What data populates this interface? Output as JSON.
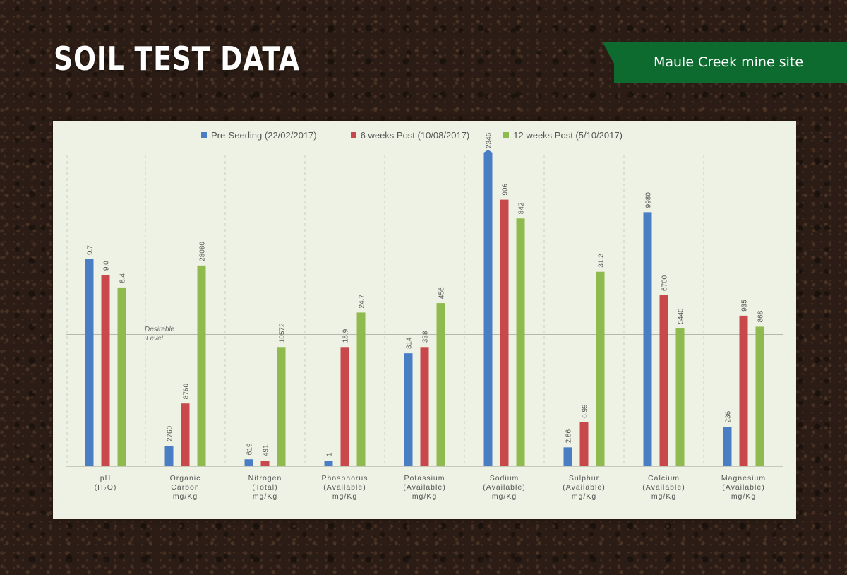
{
  "header": {
    "title": "SOIL TEST DATA",
    "site_label": "Maule Creek mine site"
  },
  "chart": {
    "desirable_label_line1": "Desirable",
    "desirable_label_line2": "Level"
  },
  "colors": {
    "pre_seeding": "#4a7ec4",
    "six_weeks": "#c8484b",
    "twelve_weeks": "#8fba4d",
    "banner": "#0d6b30"
  },
  "chart_data": {
    "type": "bar",
    "title": "",
    "categories": [
      [
        "pH",
        "(H₂O)"
      ],
      [
        "Organic",
        "Carbon",
        "mg/Kg"
      ],
      [
        "Nitrogen",
        "(Total)",
        "mg/Kg"
      ],
      [
        "Phosphorus",
        "(Available)",
        "mg/Kg"
      ],
      [
        "Potassium",
        "(Available)",
        "mg/Kg"
      ],
      [
        "Sodium",
        "(Available)",
        "mg/Kg"
      ],
      [
        "Sulphur",
        "(Available)",
        "mg/Kg"
      ],
      [
        "Calcium",
        "(Available)",
        "mg/Kg"
      ],
      [
        "Magnesium",
        "(Available)",
        "mg/Kg"
      ]
    ],
    "series": [
      {
        "name": "Pre-Seeding (22/02/2017)",
        "values": [
          9.7,
          2760,
          619,
          1,
          314,
          2346,
          2.86,
          9980,
          236
        ],
        "labels": [
          "9.7",
          "2760",
          "619",
          "1",
          "314",
          "2346",
          "2.86",
          "9980",
          "236"
        ]
      },
      {
        "name": "6 weeks Post (10/08/2017)",
        "values": [
          9.0,
          8760,
          491,
          18.9,
          338,
          906,
          6.99,
          6700,
          935
        ],
        "labels": [
          "9.0",
          "8760",
          "491",
          "18.9",
          "338",
          "906",
          "6.99",
          "6700",
          "935"
        ]
      },
      {
        "name": "12 weeks Post (5/10/2017)",
        "values": [
          8.4,
          28080,
          10572,
          24.7,
          456,
          842,
          31.2,
          5440,
          868
        ],
        "labels": [
          "8.4",
          "28080",
          "10572",
          "24.7",
          "456",
          "842",
          "31.2",
          "5440",
          "868"
        ]
      }
    ],
    "relative_heights": [
      [
        0.66,
        0.61,
        0.57
      ],
      [
        0.065,
        0.2,
        0.64
      ],
      [
        0.022,
        0.018,
        0.38
      ],
      [
        0.018,
        0.38,
        0.49
      ],
      [
        0.36,
        0.38,
        0.52
      ],
      [
        1.0,
        0.85,
        0.79
      ],
      [
        0.06,
        0.14,
        0.62
      ],
      [
        0.81,
        0.545,
        0.44
      ],
      [
        0.125,
        0.48,
        0.445
      ]
    ],
    "desirable_level_relative": 0.42,
    "axis_values_shown": false,
    "grid": false,
    "legend_position": "top"
  }
}
